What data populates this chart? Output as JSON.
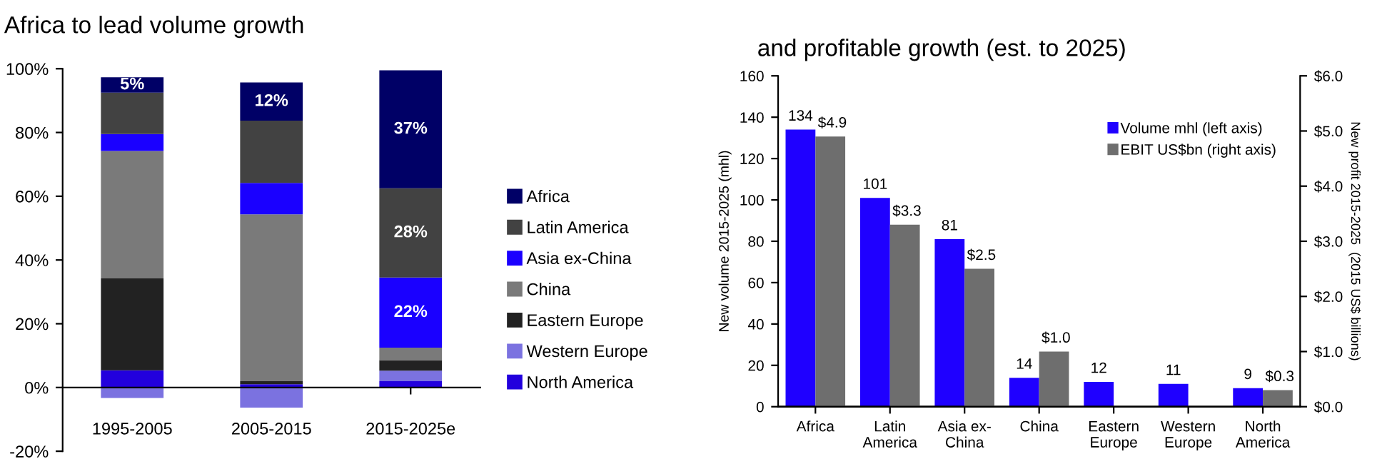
{
  "chart_data": [
    {
      "type": "bar",
      "title": "Africa to lead volume growth",
      "stacked": true,
      "legend": "right",
      "categories": [
        "1995-2005",
        "2005-2015",
        "2015-2025e"
      ],
      "ylim": [
        -20,
        100
      ],
      "yticks": [
        {
          "value": -20,
          "label": "-20%"
        },
        {
          "value": 0,
          "label": "0%"
        },
        {
          "value": 20,
          "label": "20%"
        },
        {
          "value": 40,
          "label": "40%"
        },
        {
          "value": 60,
          "label": "60%"
        },
        {
          "value": 80,
          "label": "80%"
        },
        {
          "value": 100,
          "label": "100%"
        }
      ],
      "series": [
        {
          "name": "North America",
          "color": "#2200dd",
          "values": [
            5.4,
            1,
            2
          ]
        },
        {
          "name": "Western Europe",
          "color": "#7b72e0",
          "values": [
            -3.3,
            -6.3,
            3.3
          ]
        },
        {
          "name": "Eastern Europe",
          "color": "#222222",
          "values": [
            28.8,
            1,
            3.3
          ]
        },
        {
          "name": "China",
          "color": "#7a7a7a",
          "values": [
            40,
            52.3,
            3.9
          ]
        },
        {
          "name": "Asia ex-China",
          "color": "#1a00ff",
          "values": [
            5.3,
            9.9,
            22
          ],
          "value_labels": [
            null,
            null,
            "22%"
          ]
        },
        {
          "name": "Latin America",
          "color": "#424242",
          "values": [
            13,
            19.5,
            28
          ],
          "value_labels": [
            null,
            null,
            "28%"
          ]
        },
        {
          "name": "Africa",
          "color": "#000066",
          "values": [
            4.8,
            12,
            37
          ],
          "value_labels": [
            "5%",
            "12%",
            "37%"
          ]
        }
      ]
    },
    {
      "type": "bar",
      "title": "and profitable growth (est. to 2025)",
      "legend": "top right",
      "categories": [
        "Africa",
        "Latin\nAmerica",
        "Asia ex-\nChina",
        "China",
        "Eastern\nEurope",
        "Western\nEurope",
        "North\nAmerica"
      ],
      "ylabel": "New volume 2015-2025 (mhl)",
      "y2label": "New profit 2015-2025  (2015 US$ billions)",
      "ylim": [
        0,
        160
      ],
      "yticks": [
        0,
        20,
        40,
        60,
        80,
        100,
        120,
        140,
        160
      ],
      "y2lim": [
        0,
        6
      ],
      "y2ticks": [
        {
          "value": 0,
          "label": "$0.0"
        },
        {
          "value": 1,
          "label": "$1.0"
        },
        {
          "value": 2,
          "label": "$2.0"
        },
        {
          "value": 3,
          "label": "$3.0"
        },
        {
          "value": 4,
          "label": "$4.0"
        },
        {
          "value": 5,
          "label": "$5.0"
        },
        {
          "value": 6,
          "label": "$6.0"
        }
      ],
      "series": [
        {
          "name": "Volume mhl (left axis)",
          "color": "#1f00ff",
          "values": [
            134,
            101,
            81,
            14,
            12,
            11,
            9
          ],
          "value_labels": [
            "134",
            "101",
            "81",
            "14",
            "12",
            "11",
            "9"
          ]
        },
        {
          "name": "EBIT US$bn (right axis)",
          "color": "#6e6e6e",
          "axis": "y2",
          "values": [
            4.9,
            3.3,
            2.5,
            1.0,
            null,
            null,
            0.3
          ],
          "value_labels": [
            "$4.9",
            "$3.3",
            "$2.5",
            "$1.0",
            null,
            null,
            "$0.3"
          ]
        }
      ]
    }
  ]
}
